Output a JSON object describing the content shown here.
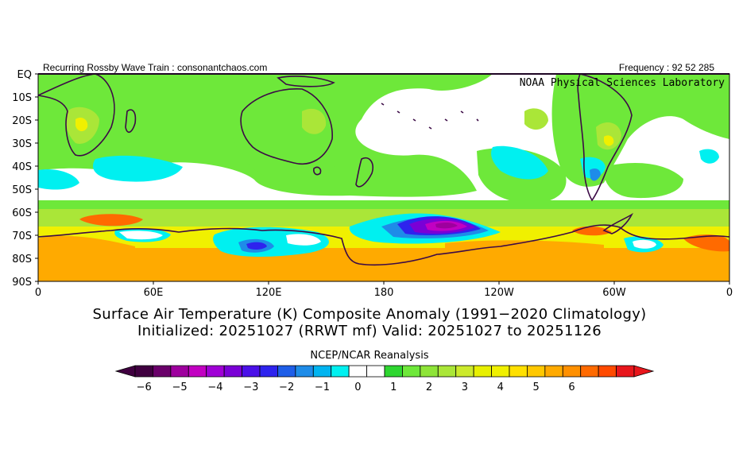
{
  "header": {
    "left": "Recurring Rossby Wave Train : consonantchaos.com",
    "right": "Frequency : 92 52 285",
    "lab": "NOAA Physical Sciences Laboratory"
  },
  "map": {
    "lat_labels": [
      "EQ",
      "10S",
      "20S",
      "30S",
      "40S",
      "50S",
      "60S",
      "70S",
      "80S",
      "90S"
    ],
    "lon_labels": [
      "0",
      "60E",
      "120E",
      "180",
      "120W",
      "60W",
      "0"
    ],
    "colors": {
      "neg6": "#400040",
      "neg5": "#9e009e",
      "neg4": "#7a00d6",
      "neg3": "#2e23ee",
      "neg2": "#1e8ce8",
      "neg1": "#00f0f0",
      "zero": "#ffffff",
      "pos1": "#6ee83a",
      "pos2": "#aae638",
      "pos3": "#f0f000",
      "pos4": "#ffaa00",
      "pos5": "#ff6a00",
      "pos6": "#e8161c",
      "coast": "#3c0a46"
    }
  },
  "title": {
    "line1": "Surface Air Temperature (K) Composite Anomaly (1991−2020 Climatology)",
    "line2": "Initialized: 20251027 (RRWT mf) Valid: 20251027 to 20251126"
  },
  "colorbar": {
    "source": "NCEP/NCAR Reanalysis",
    "ticks": [
      "−6",
      "−5",
      "−4",
      "−3",
      "−2",
      "−1",
      "0",
      "1",
      "2",
      "3",
      "4",
      "5",
      "6"
    ],
    "colors": [
      "#400040",
      "#6a006a",
      "#9e009e",
      "#c200c2",
      "#a000d6",
      "#7a00d6",
      "#4a10e8",
      "#2e23ee",
      "#1e5ee8",
      "#1e8ce8",
      "#00b4f0",
      "#00f0f0",
      "#ffffff",
      "#ffffff",
      "#2ed630",
      "#6ee83a",
      "#8ee438",
      "#aae638",
      "#ccea2c",
      "#e8f000",
      "#f0f000",
      "#ffe000",
      "#ffc800",
      "#ffaa00",
      "#ff9000",
      "#ff6a00",
      "#ff4a00",
      "#e8161c"
    ],
    "arrow_left_color": "#400040",
    "arrow_right_color": "#e8161c"
  }
}
